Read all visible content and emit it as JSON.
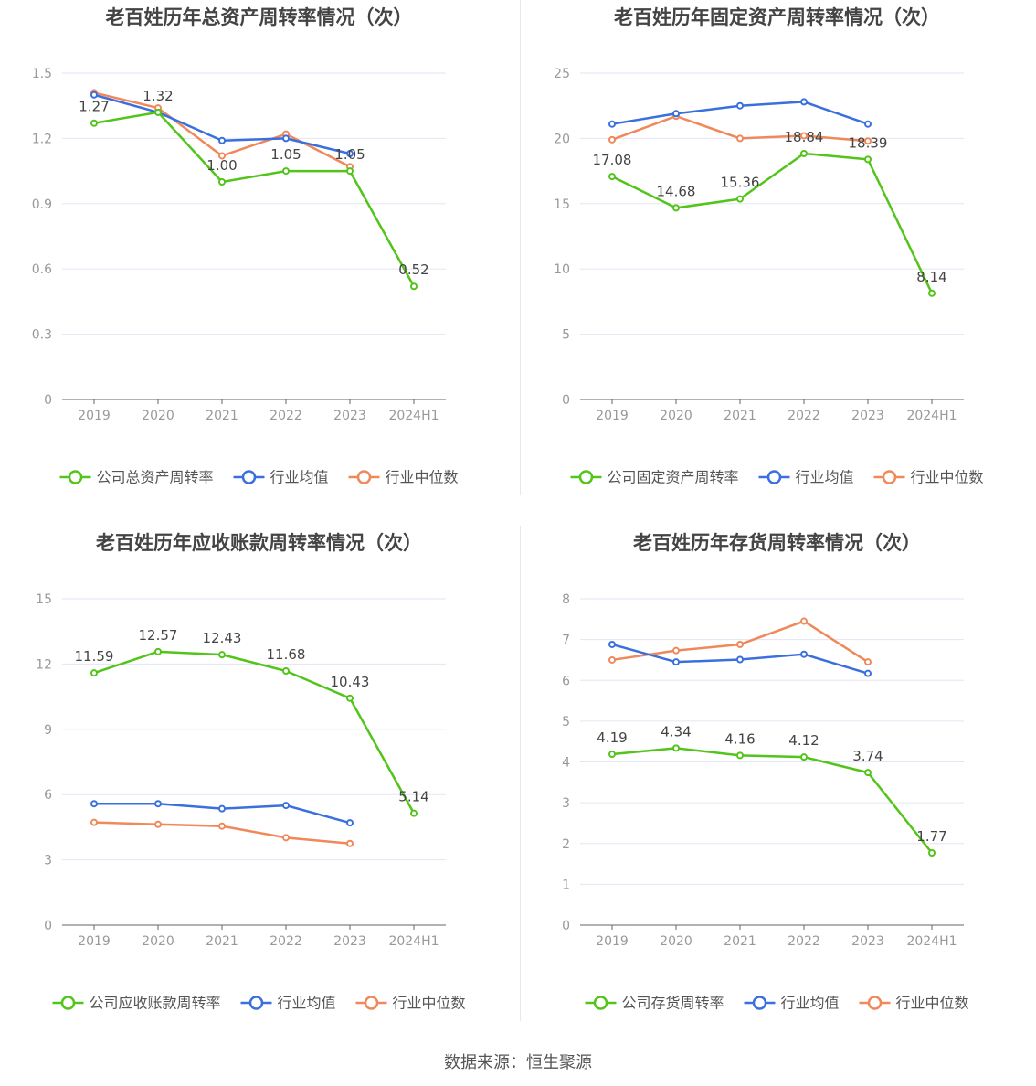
{
  "source": "数据来源：恒生聚源",
  "colors": {
    "company": "#52c41a",
    "industry_avg": "#3a70dd",
    "industry_median": "#f0885a",
    "grid": "#e3e6f3",
    "axis": "#666666",
    "tick_text": "#999999",
    "title_text": "#444444",
    "label_text": "#444444"
  },
  "chart_data": [
    {
      "type": "line",
      "title": "老百姓历年总资产周转率情况（次）",
      "categories": [
        "2019",
        "2020",
        "2021",
        "2022",
        "2023",
        "2024H1"
      ],
      "yticks": [
        "0",
        "0.3",
        "0.6",
        "0.9",
        "1.2",
        "1.5"
      ],
      "ylim": [
        0,
        1.5
      ],
      "series": [
        {
          "name": "公司总资产周转率",
          "values": [
            1.27,
            1.32,
            1.0,
            1.05,
            1.05,
            0.52
          ],
          "labels": [
            "1.27",
            "1.32",
            "1.00",
            "1.05",
            "1.05",
            "0.52"
          ]
        },
        {
          "name": "行业均值",
          "values": [
            1.4,
            1.32,
            1.19,
            1.2,
            1.13,
            null
          ]
        },
        {
          "name": "行业中位数",
          "values": [
            1.41,
            1.34,
            1.12,
            1.22,
            1.07,
            null
          ]
        }
      ],
      "legend": "bottom"
    },
    {
      "type": "line",
      "title": "老百姓历年固定资产周转率情况（次）",
      "categories": [
        "2019",
        "2020",
        "2021",
        "2022",
        "2023",
        "2024H1"
      ],
      "yticks": [
        "0",
        "5",
        "10",
        "15",
        "20",
        "25"
      ],
      "ylim": [
        0,
        25
      ],
      "series": [
        {
          "name": "公司固定资产周转率",
          "values": [
            17.08,
            14.68,
            15.36,
            18.84,
            18.39,
            8.14
          ],
          "labels": [
            "17.08",
            "14.68",
            "15.36",
            "18.84",
            "18.39",
            "8.14"
          ]
        },
        {
          "name": "行业均值",
          "values": [
            21.1,
            21.9,
            22.5,
            22.8,
            21.1,
            null
          ]
        },
        {
          "name": "行业中位数",
          "values": [
            19.9,
            21.7,
            20.0,
            20.2,
            19.8,
            null
          ]
        }
      ],
      "legend": "bottom"
    },
    {
      "type": "line",
      "title": "老百姓历年应收账款周转率情况（次）",
      "categories": [
        "2019",
        "2020",
        "2021",
        "2022",
        "2023",
        "2024H1"
      ],
      "yticks": [
        "0",
        "3",
        "6",
        "9",
        "12",
        "15"
      ],
      "ylim": [
        0,
        15
      ],
      "series": [
        {
          "name": "公司应收账款周转率",
          "values": [
            11.59,
            12.57,
            12.43,
            11.68,
            10.43,
            5.14
          ],
          "labels": [
            "11.59",
            "12.57",
            "12.43",
            "11.68",
            "10.43",
            "5.14"
          ]
        },
        {
          "name": "行业均值",
          "values": [
            5.58,
            5.58,
            5.35,
            5.5,
            4.7,
            null
          ]
        },
        {
          "name": "行业中位数",
          "values": [
            4.72,
            4.63,
            4.55,
            4.02,
            3.75,
            null
          ]
        }
      ],
      "legend": "bottom"
    },
    {
      "type": "line",
      "title": "老百姓历年存货周转率情况（次）",
      "categories": [
        "2019",
        "2020",
        "2021",
        "2022",
        "2023",
        "2024H1"
      ],
      "yticks": [
        "0",
        "1",
        "2",
        "3",
        "4",
        "5",
        "6",
        "7",
        "8"
      ],
      "ylim": [
        0,
        8
      ],
      "series": [
        {
          "name": "公司存货周转率",
          "values": [
            4.19,
            4.34,
            4.16,
            4.12,
            3.74,
            1.77
          ],
          "labels": [
            "4.19",
            "4.34",
            "4.16",
            "4.12",
            "3.74",
            "1.77"
          ]
        },
        {
          "name": "行业均值",
          "values": [
            6.88,
            6.45,
            6.51,
            6.64,
            6.17,
            null
          ]
        },
        {
          "name": "行业中位数",
          "values": [
            6.5,
            6.73,
            6.88,
            7.45,
            6.45,
            null
          ]
        }
      ],
      "legend": "bottom"
    }
  ]
}
